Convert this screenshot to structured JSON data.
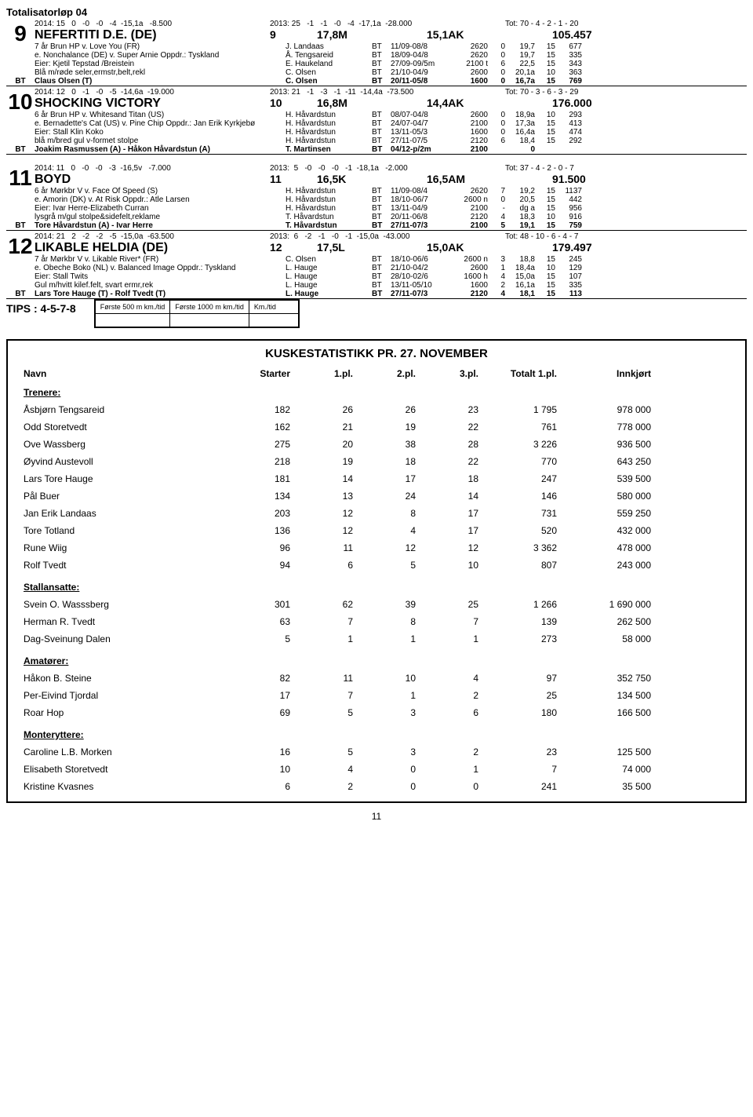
{
  "race_title": "Totalisatorløp 04",
  "entries": [
    {
      "num": "9",
      "stat1": "2014: 15   0   -0   -0   -4  -15,1a   -8.500",
      "stat2": "2013: 25   -1   -1   -0   -4  -17,1a  -28.000",
      "stat3": "Tot: 70 - 4 - 2 - 1 - 20",
      "name": "NEFERTITI D.E. (DE)",
      "pnum": "9",
      "dist": "17,8M",
      "rec": "15,1AK",
      "money": "105.457",
      "details": [
        {
          "l": "7 år Brun HP v. Love You (FR)",
          "drv": "J. Landaas",
          "bt": "BT",
          "date": "11/09-08/8",
          "dist": "2620",
          "n1": "0",
          "time": "19,7",
          "n2": "15",
          "n3": "677"
        },
        {
          "l": "e. Nonchalance (DE) v. Super Arnie  Oppdr.: Tyskland",
          "drv": "Å. Tengsareid",
          "bt": "BT",
          "date": "18/09-04/8",
          "dist": "2620",
          "n1": "0",
          "time": "19,7",
          "n2": "15",
          "n3": "335"
        },
        {
          "l": "Eier: Kjetil Tepstad /Breistein",
          "drv": "E. Haukeland",
          "bt": "BT",
          "date": "27/09-09/5m",
          "dist": "2100 t",
          "n1": "6",
          "time": "22,5",
          "n2": "15",
          "n3": "343"
        },
        {
          "l": "Blå m/røde seler,ermstr,belt,rekl",
          "drv": "C. Olsen",
          "bt": "BT",
          "date": "21/10-04/9",
          "dist": "2600",
          "n1": "0",
          "time": "20,1a",
          "n2": "10",
          "n3": "363"
        }
      ],
      "bt": {
        "lbl": "BT",
        "txt": "Claus Olsen (T)",
        "drv": "C. Olsen",
        "btc": "BT",
        "date": "20/11-05/8",
        "dist": "1600",
        "n1": "0",
        "time": "16,7a",
        "n2": "15",
        "n3": "769"
      }
    },
    {
      "num": "10",
      "stat1": "2014: 12   0   -1   -0   -5  -14,6a  -19.000",
      "stat2": "2013: 21   -1   -3   -1  -11  -14,4a  -73.500",
      "stat3": "Tot: 70 - 3 - 6 - 3 - 29",
      "name": "SHOCKING VICTORY",
      "pnum": "10",
      "dist": "16,8M",
      "rec": "14,4AK",
      "money": "176.000",
      "details": [
        {
          "l": "6 år Brun HP v. Whitesand Titan (US)",
          "drv": "H. Håvardstun",
          "bt": "BT",
          "date": "08/07-04/8",
          "dist": "2600",
          "n1": "0",
          "time": "18,9a",
          "n2": "10",
          "n3": "293"
        },
        {
          "l": "e. Bernadette's Cat (US) v. Pine Chip  Oppdr.: Jan Erik Kyrkjebø",
          "drv": "H. Håvardstun",
          "bt": "BT",
          "date": "24/07-04/7",
          "dist": "2100",
          "n1": "0",
          "time": "17,3a",
          "n2": "15",
          "n3": "413"
        },
        {
          "l": "Eier: Stall Klin Koko",
          "drv": "H. Håvardstun",
          "bt": "BT",
          "date": "13/11-05/3",
          "dist": "1600",
          "n1": "0",
          "time": "16,4a",
          "n2": "15",
          "n3": "474"
        },
        {
          "l": "blå m/bred gul v-formet stolpe",
          "drv": "H. Håvardstun",
          "bt": "BT",
          "date": "27/11-07/5",
          "dist": "2120",
          "n1": "6",
          "time": "18,4",
          "n2": "15",
          "n3": "292"
        }
      ],
      "bt": {
        "lbl": "BT",
        "txt": "Joakim Rasmussen (A) - Håkon Håvardstun (A)",
        "drv": "T. Martinsen",
        "btc": "BT",
        "date": "04/12-p/2m",
        "dist": "2100",
        "n1": "",
        "time": "0",
        "n2": "",
        "n3": ""
      }
    },
    {
      "num": "11",
      "stat1": "2014: 11   0   -0   -0   -3  -16,5v   -7.000",
      "stat2": "2013:  5   -0   -0   -0   -1  -18,1a   -2.000",
      "stat3": "Tot: 37 - 4 - 2 - 0 - 7",
      "name": "BOYD",
      "pnum": "11",
      "dist": "16,5K",
      "rec": "16,5AM",
      "money": "91.500",
      "details": [
        {
          "l": "6 år Mørkbr V v. Face Of Speed (S)",
          "drv": "H. Håvardstun",
          "bt": "BT",
          "date": "11/09-08/4",
          "dist": "2620",
          "n1": "7",
          "time": "19,2",
          "n2": "15",
          "n3": "1137"
        },
        {
          "l": "e. Amorin (DK) v. At Risk  Oppdr.: Atle Larsen",
          "drv": "H. Håvardstun",
          "bt": "BT",
          "date": "18/10-06/7",
          "dist": "2600 n",
          "n1": "0",
          "time": "20,5",
          "n2": "15",
          "n3": "442"
        },
        {
          "l": "Eier: Ivar Herre-Elizabeth Curran",
          "drv": "H. Håvardstun",
          "bt": "BT",
          "date": "13/11-04/9",
          "dist": "2100",
          "n1": "-",
          "time": "dg a",
          "n2": "15",
          "n3": "956"
        },
        {
          "l": "lysgrå m/gul stolpe&sidefelt,reklame",
          "drv": "T. Håvardstun",
          "bt": "BT",
          "date": "20/11-06/8",
          "dist": "2120",
          "n1": "4",
          "time": "18,3",
          "n2": "10",
          "n3": "916"
        }
      ],
      "bt": {
        "lbl": "BT",
        "txt": "Tore Håvardstun (A) - Ivar Herre",
        "drv": "T. Håvardstun",
        "btc": "BT",
        "date": "27/11-07/3",
        "dist": "2100",
        "n1": "5",
        "time": "19,1",
        "n2": "15",
        "n3": "759"
      }
    },
    {
      "num": "12",
      "stat1": "2014: 21   2   -2   -2   -5  -15,0a  -63.500",
      "stat2": "2013:  6   -2   -1   -0   -1  -15,0a  -43.000",
      "stat3": "Tot: 48 - 10 - 6 - 4 - 7",
      "name": "LIKABLE HELDIA (DE)",
      "pnum": "12",
      "dist": "17,5L",
      "rec": "15,0AK",
      "money": "179.497",
      "details": [
        {
          "l": "7 år Mørkbr V v. Likable River* (FR)",
          "drv": "C. Olsen",
          "bt": "BT",
          "date": "18/10-06/6",
          "dist": "2600 n",
          "n1": "3",
          "time": "18,8",
          "n2": "15",
          "n3": "245"
        },
        {
          "l": "e. Obeche Boko (NL) v. Balanced Image  Oppdr.: Tyskland",
          "drv": "L. Hauge",
          "bt": "BT",
          "date": "21/10-04/2",
          "dist": "2600",
          "n1": "1",
          "time": "18,4a",
          "n2": "10",
          "n3": "129"
        },
        {
          "l": "Eier: Stall Twits",
          "drv": "L. Hauge",
          "bt": "BT",
          "date": "28/10-02/6",
          "dist": "1600 h",
          "n1": "4",
          "time": "15,0a",
          "n2": "15",
          "n3": "107"
        },
        {
          "l": "Gul m/hvitt kilef.felt, svart ermr,rek",
          "drv": "L. Hauge",
          "bt": "BT",
          "date": "13/11-05/10",
          "dist": "1600",
          "n1": "2",
          "time": "16,1a",
          "n2": "15",
          "n3": "335"
        }
      ],
      "bt": {
        "lbl": "BT",
        "txt": "Lars Tore Hauge (T) - Rolf Tvedt (T)",
        "drv": "L. Hauge",
        "btc": "BT",
        "date": "27/11-07/3",
        "dist": "2120",
        "n1": "4",
        "time": "18,1",
        "n2": "15",
        "n3": "113"
      }
    }
  ],
  "tips": "TIPS : 4-5-7-8",
  "footer_cols": [
    "Første 500 m km./tid",
    "Første 1000 m km./tid",
    "Km./tid"
  ],
  "stats": {
    "title": "KUSKESTATISTIKK PR. 27. NOVEMBER",
    "headers": [
      "Navn",
      "Starter",
      "1.pl.",
      "2.pl.",
      "3.pl.",
      "Totalt 1.pl.",
      "Innkjørt"
    ],
    "sections": [
      {
        "title": "Trenere:",
        "rows": [
          [
            "Åsbjørn Tengsareid",
            "182",
            "26",
            "26",
            "23",
            "1 795",
            "978 000"
          ],
          [
            "Odd Storetvedt",
            "162",
            "21",
            "19",
            "22",
            "761",
            "778 000"
          ],
          [
            "Ove Wassberg",
            "275",
            "20",
            "38",
            "28",
            "3 226",
            "936 500"
          ],
          [
            "Øyvind Austevoll",
            "218",
            "19",
            "18",
            "22",
            "770",
            "643 250"
          ],
          [
            "Lars Tore Hauge",
            "181",
            "14",
            "17",
            "18",
            "247",
            "539 500"
          ],
          [
            "Pål Buer",
            "134",
            "13",
            "24",
            "14",
            "146",
            "580 000"
          ],
          [
            "Jan Erik Landaas",
            "203",
            "12",
            "8",
            "17",
            "731",
            "559 250"
          ],
          [
            "Tore Totland",
            "136",
            "12",
            "4",
            "17",
            "520",
            "432 000"
          ],
          [
            "Rune Wiig",
            "96",
            "11",
            "12",
            "12",
            "3 362",
            "478 000"
          ],
          [
            "Rolf Tvedt",
            "94",
            "6",
            "5",
            "10",
            "807",
            "243 000"
          ]
        ]
      },
      {
        "title": "Stallansatte:",
        "rows": [
          [
            "Svein O. Wasssberg",
            "301",
            "62",
            "39",
            "25",
            "1 266",
            "1 690 000"
          ],
          [
            "Herman R. Tvedt",
            "63",
            "7",
            "8",
            "7",
            "139",
            "262 500"
          ],
          [
            "Dag-Sveinung Dalen",
            "5",
            "1",
            "1",
            "1",
            "273",
            "58 000"
          ]
        ]
      },
      {
        "title": "Amatører:",
        "rows": [
          [
            "Håkon B. Steine",
            "82",
            "11",
            "10",
            "4",
            "97",
            "352 750"
          ],
          [
            "Per-Eivind Tjordal",
            "17",
            "7",
            "1",
            "2",
            "25",
            "134 500"
          ],
          [
            "Roar Hop",
            "69",
            "5",
            "3",
            "6",
            "180",
            "166 500"
          ]
        ]
      },
      {
        "title": "Monteryttere:",
        "rows": [
          [
            "Caroline L.B. Morken",
            "16",
            "5",
            "3",
            "2",
            "23",
            "125 500"
          ],
          [
            "Elisabeth Storetvedt",
            "10",
            "4",
            "0",
            "1",
            "7",
            "74 000"
          ],
          [
            "Kristine Kvasnes",
            "6",
            "2",
            "0",
            "0",
            "241",
            "35 500"
          ]
        ]
      }
    ]
  },
  "page_num": "11"
}
